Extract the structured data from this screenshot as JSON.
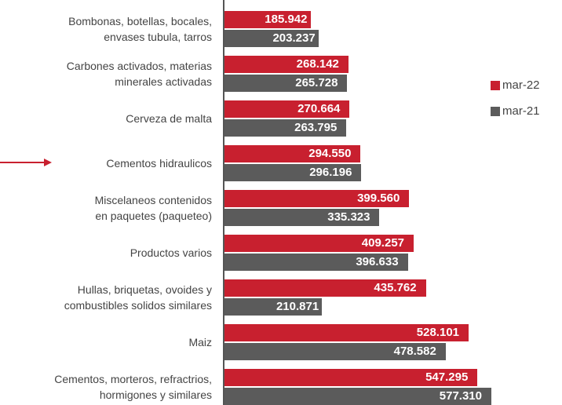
{
  "chart_data": {
    "type": "bar",
    "orientation": "horizontal",
    "categories": [
      "Bombonas, botellas, bocales,\nenvases tubula, tarros",
      "Carbones activados, materias\nminerales activadas",
      "Cerveza de malta",
      "Cementos hidraulicos",
      "Miscelaneos contenidos \nen paquetes (paqueteo)",
      "Productos varios",
      "Hullas, briquetas, ovoides y\ncombustibles solidos similares",
      "Maiz",
      "Cementos, morteros, refractrios,\nhormigones y similares"
    ],
    "series": [
      {
        "name": "mar-22",
        "color": "#c8202f",
        "values": [
          185942,
          268142,
          270664,
          294550,
          399560,
          409257,
          435762,
          528101,
          547295
        ],
        "value_labels": [
          "185.942",
          "268.142",
          "270.664",
          "294.550",
          "399.560",
          "409.257",
          "435.762",
          "528.101",
          "547.295"
        ]
      },
      {
        "name": "mar-21",
        "color": "#5b5b5b",
        "values": [
          203237,
          265728,
          263795,
          296196,
          335323,
          396633,
          210871,
          478582,
          577310
        ],
        "value_labels": [
          "203.237",
          "265.728",
          "263.795",
          "296.196",
          "335.323",
          "396.633",
          "210.871",
          "478.582",
          "577.310"
        ]
      }
    ],
    "legend": "right"
  }
}
